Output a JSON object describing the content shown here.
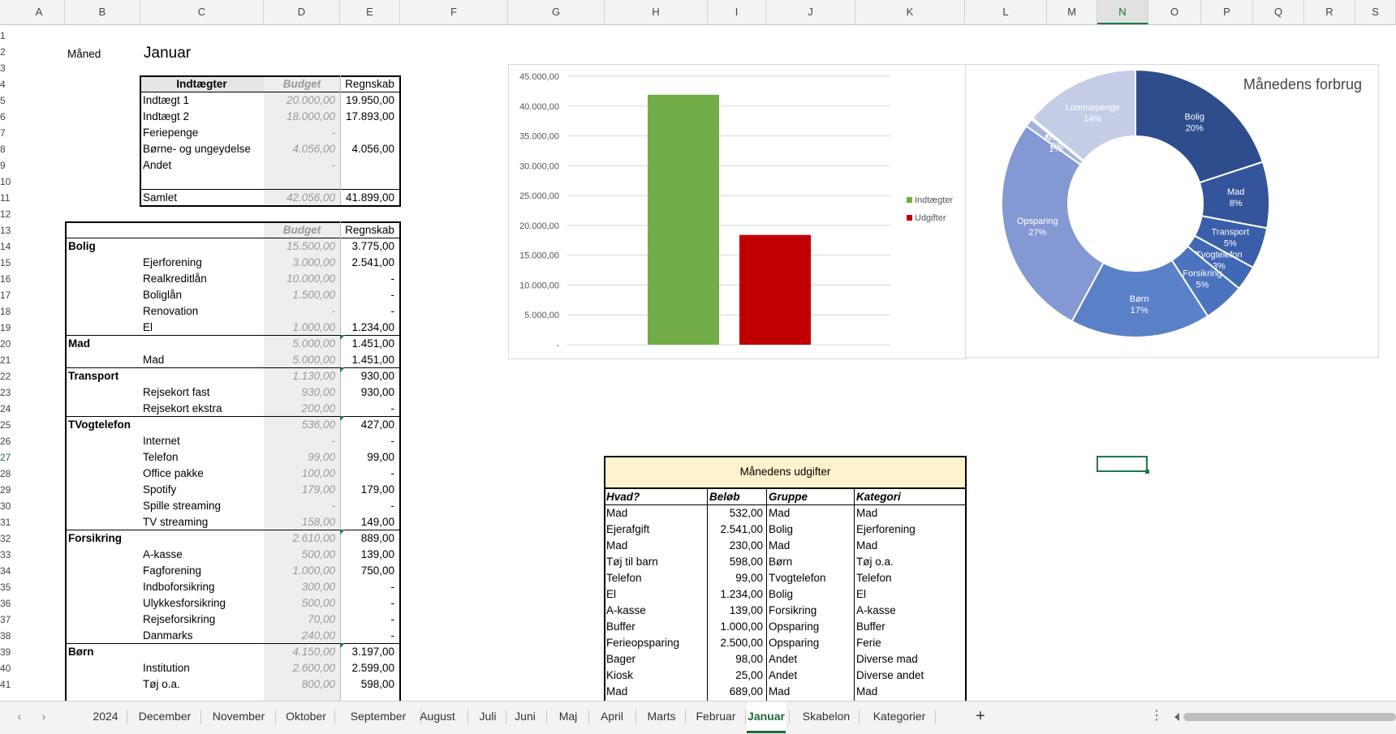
{
  "columns": [
    "A",
    "B",
    "C",
    "D",
    "E",
    "F",
    "G",
    "H",
    "I",
    "J",
    "K",
    "L",
    "M",
    "N",
    "O",
    "P",
    "Q",
    "R",
    "S"
  ],
  "rows": [
    "1",
    "2",
    "3",
    "4",
    "5",
    "6",
    "7",
    "8",
    "9",
    "10",
    "11",
    "12",
    "13",
    "14",
    "15",
    "16",
    "17",
    "18",
    "19",
    "20",
    "21",
    "22",
    "23",
    "24",
    "25",
    "26",
    "27",
    "28",
    "29",
    "30",
    "31",
    "32",
    "33",
    "34",
    "35",
    "36",
    "37",
    "38",
    "39",
    "40",
    "41"
  ],
  "month": {
    "label": "Måned",
    "value": "Januar"
  },
  "income": {
    "headers": [
      "Indtægter",
      "Budget",
      "Regnskab"
    ],
    "rows": [
      {
        "name": "Indtægt 1",
        "budget": "20.000,00",
        "actual": "19.950,00"
      },
      {
        "name": "Indtægt 2",
        "budget": "18.000,00",
        "actual": "17.893,00"
      },
      {
        "name": "Feriepenge",
        "budget": "-",
        "actual": ""
      },
      {
        "name": "Børne- og ungeydelse",
        "budget": "4.056,00",
        "actual": "4.056,00"
      },
      {
        "name": "Andet",
        "budget": "-",
        "actual": ""
      }
    ],
    "total": {
      "name": "Samlet",
      "budget": "42.056,00",
      "actual": "41.899,00"
    }
  },
  "expenses": {
    "headers": [
      "Budget",
      "Regnskab"
    ],
    "rows": [
      {
        "name": "Bolig",
        "group": true,
        "budget": "15.500,00",
        "actual": "3.775,00"
      },
      {
        "name": "Ejerforening",
        "budget": "3.000,00",
        "actual": "2.541,00"
      },
      {
        "name": "Realkreditlån",
        "budget": "10.000,00",
        "actual": "-"
      },
      {
        "name": "Boliglån",
        "budget": "1.500,00",
        "actual": "-"
      },
      {
        "name": "Renovation",
        "budget": "-",
        "actual": "-"
      },
      {
        "name": "El",
        "budget": "1.000,00",
        "actual": "1.234,00"
      },
      {
        "name": "Mad",
        "group": true,
        "budget": "5.000,00",
        "actual": "1.451,00"
      },
      {
        "name": "Mad",
        "budget": "5.000,00",
        "actual": "1.451,00"
      },
      {
        "name": "Transport",
        "group": true,
        "budget": "1.130,00",
        "actual": "930,00"
      },
      {
        "name": "Rejsekort fast",
        "budget": "930,00",
        "actual": "930,00"
      },
      {
        "name": "Rejsekort ekstra",
        "budget": "200,00",
        "actual": "-"
      },
      {
        "name": "TVogtelefon",
        "group": true,
        "budget": "536,00",
        "actual": "427,00"
      },
      {
        "name": "Internet",
        "budget": "-",
        "actual": "-"
      },
      {
        "name": "Telefon",
        "budget": "99,00",
        "actual": "99,00"
      },
      {
        "name": "Office pakke",
        "budget": "100,00",
        "actual": "-"
      },
      {
        "name": "Spotify",
        "budget": "179,00",
        "actual": "179,00"
      },
      {
        "name": "Spille streaming",
        "budget": "-",
        "actual": "-"
      },
      {
        "name": "TV streaming",
        "budget": "158,00",
        "actual": "149,00"
      },
      {
        "name": "Forsikring",
        "group": true,
        "budget": "2.610,00",
        "actual": "889,00"
      },
      {
        "name": "A-kasse",
        "budget": "500,00",
        "actual": "139,00"
      },
      {
        "name": "Fagforening",
        "budget": "1.000,00",
        "actual": "750,00"
      },
      {
        "name": "Indboforsikring",
        "budget": "300,00",
        "actual": "-"
      },
      {
        "name": "Ulykkesforsikring",
        "budget": "500,00",
        "actual": "-"
      },
      {
        "name": "Rejseforsikring",
        "budget": "70,00",
        "actual": "-"
      },
      {
        "name": "Danmarks",
        "budget": "240,00",
        "actual": "-"
      },
      {
        "name": "Børn",
        "group": true,
        "budget": "4.150,00",
        "actual": "3.197,00"
      },
      {
        "name": "Institution",
        "budget": "2.600,00",
        "actual": "2.599,00"
      },
      {
        "name": "Tøj o.a.",
        "budget": "800,00",
        "actual": "598,00"
      }
    ]
  },
  "chart_data": [
    {
      "type": "bar",
      "categories": [
        "Indtægter",
        "Udgifter"
      ],
      "values": [
        41899,
        18400
      ],
      "colors": [
        "#70ad47",
        "#c00000"
      ],
      "ylim": [
        0,
        45000
      ],
      "yticks": [
        "45.000,00",
        "40.000,00",
        "35.000,00",
        "30.000,00",
        "25.000,00",
        "20.000,00",
        "15.000,00",
        "10.000,00",
        "5.000,00",
        "-"
      ],
      "legend": [
        "Indtægter",
        "Udgifter"
      ],
      "legend_position": "right",
      "grid": true
    },
    {
      "type": "pie",
      "title": "Månedens forbrug",
      "donut": true,
      "slices": [
        {
          "label": "Bolig",
          "pct": "20%",
          "value": 20,
          "color": "#2e4d8c"
        },
        {
          "label": "Mad",
          "pct": "8%",
          "value": 8,
          "color": "#34559c"
        },
        {
          "label": "Transport",
          "pct": "5%",
          "value": 5,
          "color": "#3a5eaa"
        },
        {
          "label": "Tvogtelefon",
          "pct": "3%",
          "value": 3,
          "color": "#4168b5"
        },
        {
          "label": "Forsikring",
          "pct": "5%",
          "value": 5,
          "color": "#4b73be"
        },
        {
          "label": "Børn",
          "pct": "17%",
          "value": 17,
          "color": "#5a80c7"
        },
        {
          "label": "Opsparing",
          "pct": "27%",
          "value": 27,
          "color": "#8499d3"
        },
        {
          "label": "Andet",
          "pct": "1%",
          "value": 1,
          "color": "#a3b2dc"
        },
        {
          "label": "Andet",
          "pct": "0%",
          "value": 0.2,
          "color": "#b7c3e3"
        },
        {
          "label": "Lommepenge",
          "pct": "14%",
          "value": 14,
          "color": "#c5cde6"
        }
      ]
    }
  ],
  "expense_log": {
    "title": "Månedens udgifter",
    "headers": [
      "Hvad?",
      "Beløb",
      "Gruppe",
      "Kategori"
    ],
    "rows": [
      [
        "Mad",
        "532,00",
        "Mad",
        "Mad"
      ],
      [
        "Ejerafgift",
        "2.541,00",
        "Bolig",
        "Ejerforening"
      ],
      [
        "Mad",
        "230,00",
        "Mad",
        "Mad"
      ],
      [
        "Tøj til barn",
        "598,00",
        "Børn",
        "Tøj o.a."
      ],
      [
        "Telefon",
        "99,00",
        "Tvogtelefon",
        "Telefon"
      ],
      [
        "El",
        "1.234,00",
        "Bolig",
        "El"
      ],
      [
        "A-kasse",
        "139,00",
        "Forsikring",
        "A-kasse"
      ],
      [
        "Buffer",
        "1.000,00",
        "Opsparing",
        "Buffer"
      ],
      [
        "Ferieopsparing",
        "2.500,00",
        "Opsparing",
        "Ferie"
      ],
      [
        "Bager",
        "98,00",
        "Andet",
        "Diverse mad"
      ],
      [
        "Kiosk",
        "25,00",
        "Andet",
        "Diverse andet"
      ],
      [
        "Mad",
        "689,00",
        "Mad",
        "Mad"
      ]
    ]
  },
  "sheet_tabs": [
    "2024",
    "December",
    "November",
    "Oktober",
    "September",
    "August",
    "Juli",
    "Juni",
    "Maj",
    "April",
    "Marts",
    "Februar",
    "Januar",
    "Skabelon",
    "Kategorier"
  ],
  "active_tab": "Januar",
  "add_sheet_label": "+",
  "options_label": "⋮"
}
